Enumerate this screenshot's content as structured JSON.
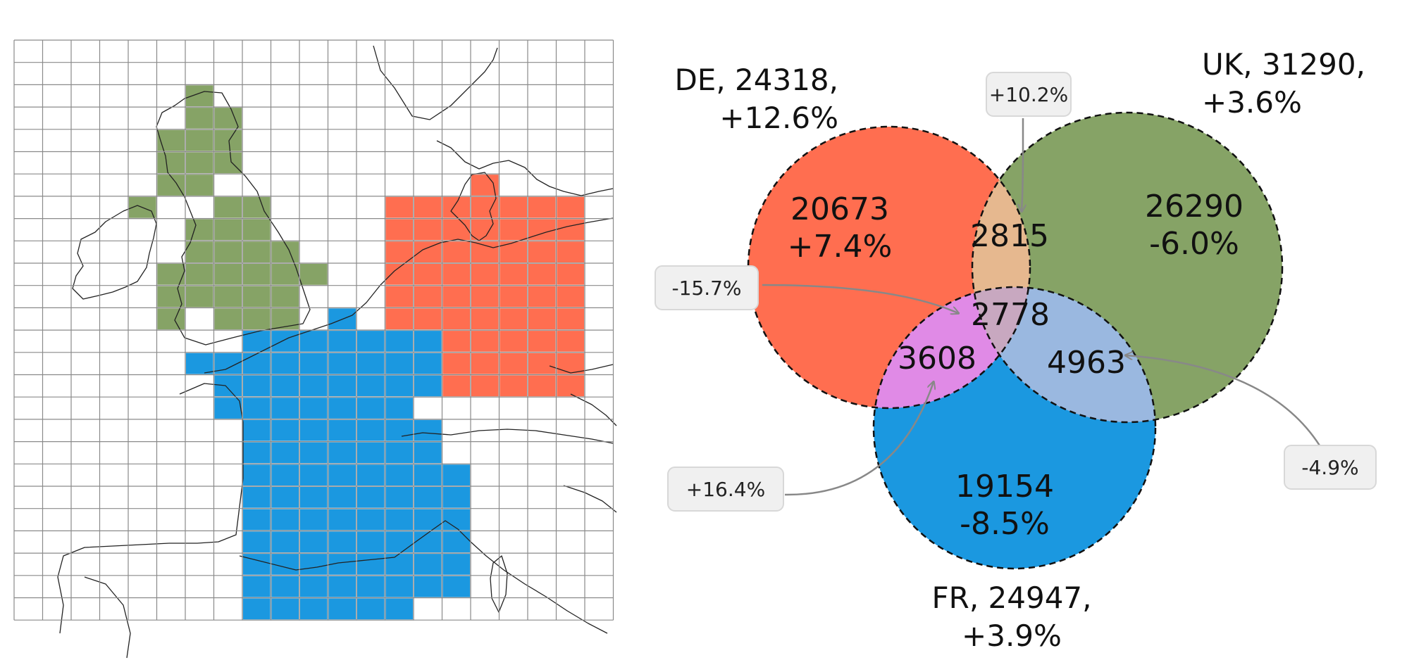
{
  "colors": {
    "de": "#ff6e50",
    "uk": "#86a366",
    "fr": "#1b98e0",
    "de_uk": "#e6b88f",
    "de_fr": "#e08ae6",
    "uk_fr": "#9ab8e0",
    "center": "#c8a8c0",
    "callout_bg": "#f0f0f0",
    "grid": "#777777",
    "coast": "#222222"
  },
  "map": {
    "regions": [
      {
        "id": "uk",
        "color_key": "uk"
      },
      {
        "id": "de",
        "color_key": "de"
      },
      {
        "id": "fr",
        "color_key": "fr"
      }
    ]
  },
  "venn": {
    "sets": [
      {
        "id": "de",
        "label_line1": "DE, 24318,",
        "label_line2": "+12.6%"
      },
      {
        "id": "uk",
        "label_line1": "UK, 31290,",
        "label_line2": "+3.6%"
      },
      {
        "id": "fr",
        "label_line1": "FR, 24947,",
        "label_line2": "+3.9%"
      }
    ],
    "regions": {
      "de_only": {
        "value": "20673",
        "change": "+7.4%"
      },
      "uk_only": {
        "value": "26290",
        "change": "-6.0%"
      },
      "fr_only": {
        "value": "19154",
        "change": "-8.5%"
      },
      "de_uk": {
        "value": "2815"
      },
      "center": {
        "value": "2778"
      },
      "de_fr": {
        "value": "3608"
      },
      "uk_fr": {
        "value": "4963"
      }
    },
    "callouts": [
      {
        "id": "de_uk",
        "text": "+10.2%"
      },
      {
        "id": "center",
        "text": "-15.7%"
      },
      {
        "id": "de_fr",
        "text": "+16.4%"
      },
      {
        "id": "uk_fr",
        "text": "-4.9%"
      }
    ]
  }
}
